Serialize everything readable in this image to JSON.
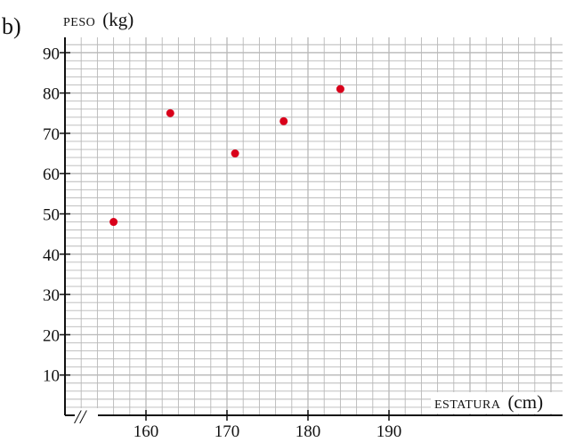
{
  "part_label": "b)",
  "chart_data": {
    "type": "scatter",
    "ylabel_small": "PESO",
    "ylabel_unit": "(kg)",
    "xlabel_small": "ESTATURA",
    "xlabel_unit": "(cm)",
    "axis_break": "//",
    "x": [
      156,
      163,
      171,
      177,
      184
    ],
    "y": [
      48,
      75,
      65,
      73,
      81
    ],
    "xticks": [
      "160",
      "170",
      "180",
      "190"
    ],
    "xtick_values": [
      160,
      170,
      180,
      190
    ],
    "yticks": [
      "10",
      "20",
      "30",
      "40",
      "50",
      "60",
      "70",
      "80",
      "90"
    ],
    "ytick_values": [
      10,
      20,
      30,
      40,
      50,
      60,
      70,
      80,
      90
    ],
    "xlim": [
      150,
      200
    ],
    "ylim": [
      0,
      95
    ],
    "grid": true,
    "point_color": "#d9001b",
    "grid_color": "#b8b8b8"
  }
}
